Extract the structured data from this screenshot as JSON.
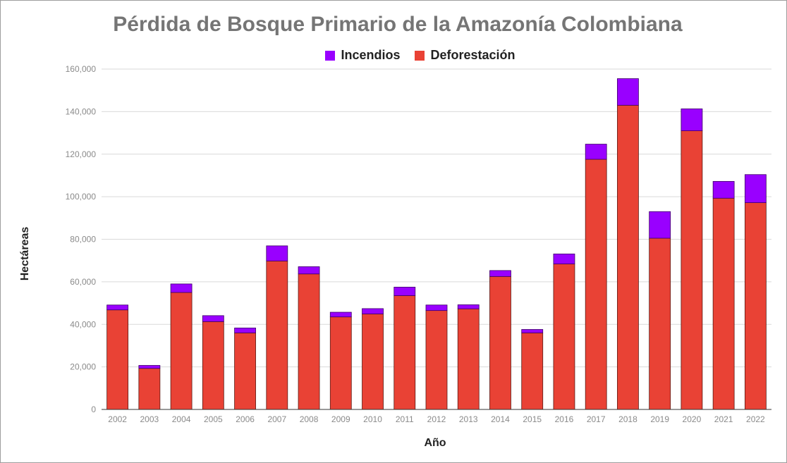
{
  "chart_data": {
    "type": "bar",
    "stacked": true,
    "title": "Pérdida de Bosque Primario de la Amazonía Colombiana",
    "xlabel": "Año",
    "ylabel": "Hectáreas",
    "ylim": [
      0,
      160000
    ],
    "yticks": [
      "0",
      "20,000",
      "40,000",
      "60,000",
      "80,000",
      "100,000",
      "120,000",
      "140,000",
      "160,000"
    ],
    "ytick_values": [
      0,
      20000,
      40000,
      60000,
      80000,
      100000,
      120000,
      140000,
      160000
    ],
    "grid": true,
    "legend_position": "top",
    "categories": [
      "2002",
      "2003",
      "2004",
      "2005",
      "2006",
      "2007",
      "2008",
      "2009",
      "2010",
      "2011",
      "2012",
      "2013",
      "2014",
      "2015",
      "2016",
      "2017",
      "2018",
      "2019",
      "2020",
      "2021",
      "2022"
    ],
    "series": [
      {
        "name": "Deforestación",
        "color": "#e94235",
        "values": [
          46800,
          19300,
          55000,
          41300,
          36000,
          69800,
          63700,
          43500,
          44900,
          53500,
          46500,
          47300,
          62500,
          36000,
          68400,
          117600,
          143000,
          80500,
          131000,
          99300,
          97200
        ]
      },
      {
        "name": "Incendios",
        "color": "#9900ff",
        "values": [
          2300,
          1400,
          4000,
          2800,
          2300,
          7100,
          3400,
          2200,
          2500,
          4000,
          2600,
          1900,
          2800,
          1600,
          4700,
          7100,
          12500,
          12500,
          10300,
          7900,
          13200
        ]
      }
    ]
  },
  "legend": {
    "incendios": "Incendios",
    "incendios_color": "#9900ff",
    "deforestacion": "Deforestación",
    "deforestacion_color": "#e94235"
  }
}
